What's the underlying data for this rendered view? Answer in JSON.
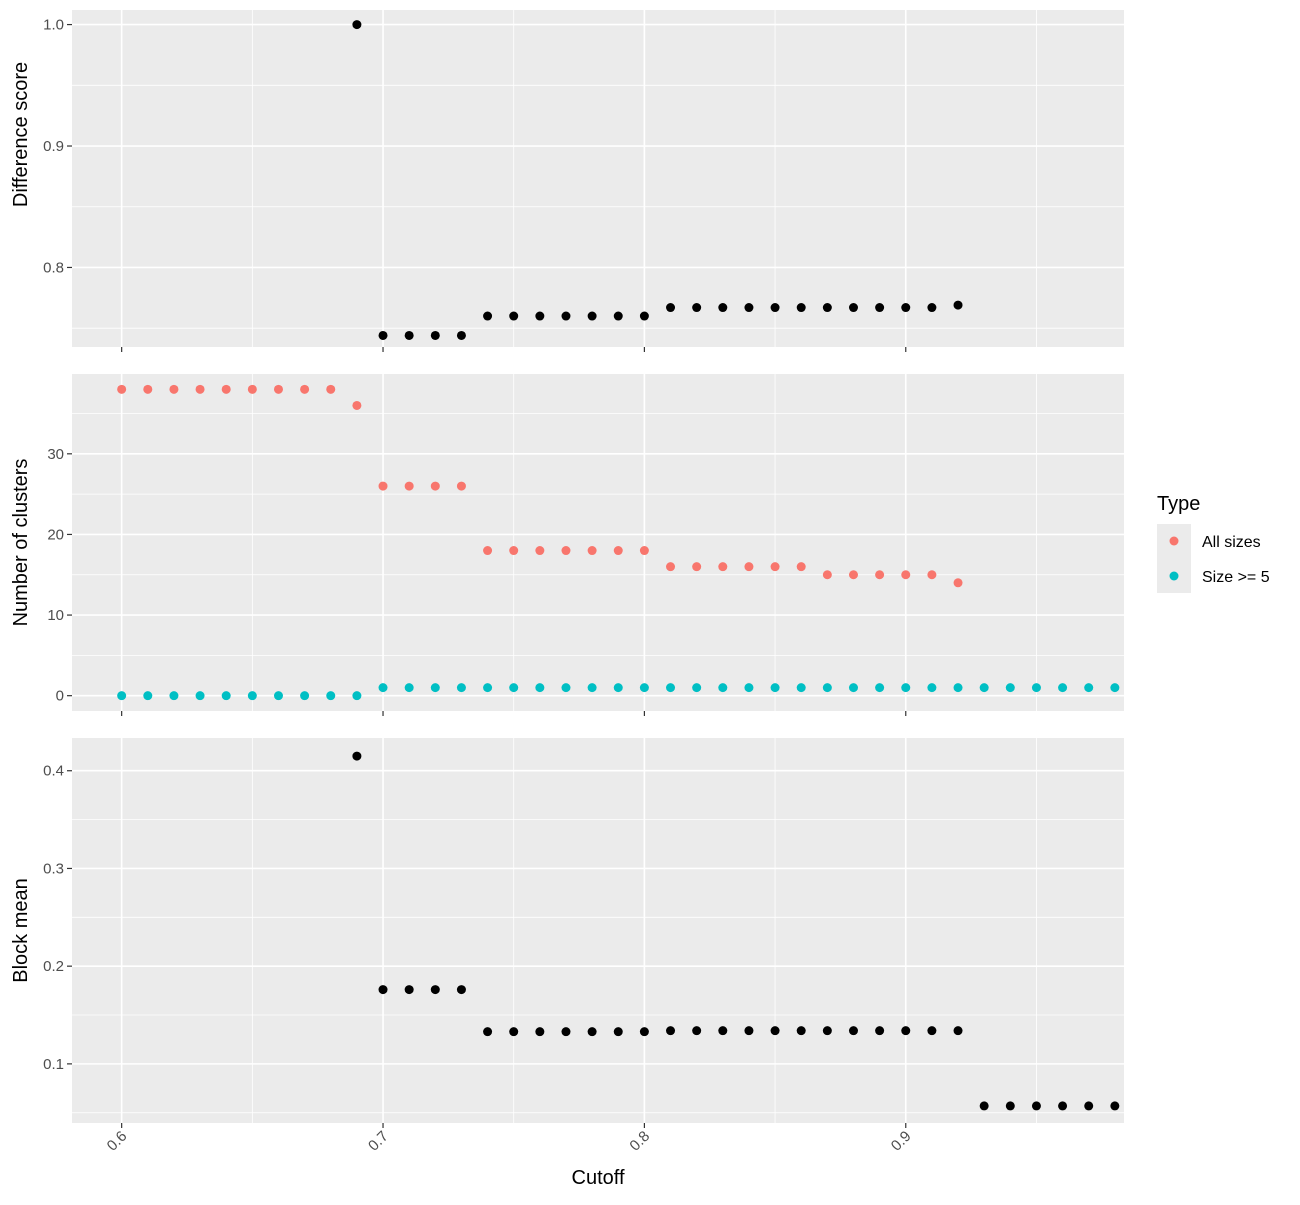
{
  "chart_data": {
    "type": "scatter",
    "xlabel": "Cutoff",
    "x_ticks": [
      0.6,
      0.7,
      0.8,
      0.9
    ],
    "xlim": [
      0.581,
      0.9835
    ],
    "panels": [
      {
        "id": "difference",
        "ylabel": "Difference score",
        "ylim": [
          0.7345,
          1.012
        ],
        "y_ticks": [
          0.8,
          0.9,
          1.0
        ],
        "y_tick_labels": [
          "0.8",
          "0.9",
          "1.0"
        ],
        "series": [
          {
            "color": "#000000",
            "x": [
              0.69,
              0.7,
              0.71,
              0.72,
              0.73,
              0.74,
              0.75,
              0.76,
              0.77,
              0.78,
              0.79,
              0.8,
              0.81,
              0.82,
              0.83,
              0.84,
              0.85,
              0.86,
              0.87,
              0.88,
              0.89,
              0.9,
              0.91,
              0.92
            ],
            "y": [
              1.0,
              0.744,
              0.744,
              0.744,
              0.744,
              0.76,
              0.76,
              0.76,
              0.76,
              0.76,
              0.76,
              0.76,
              0.767,
              0.767,
              0.767,
              0.767,
              0.767,
              0.767,
              0.767,
              0.767,
              0.767,
              0.767,
              0.767,
              0.769
            ]
          }
        ]
      },
      {
        "id": "clusters",
        "ylabel": "Number of clusters",
        "ylim": [
          -1.9,
          39.9
        ],
        "y_ticks": [
          0,
          10,
          20,
          30
        ],
        "y_tick_labels": [
          "0",
          "10",
          "20",
          "30"
        ],
        "series": [
          {
            "name": "All sizes",
            "color": "#F8766D",
            "x": [
              0.6,
              0.61,
              0.62,
              0.63,
              0.64,
              0.65,
              0.66,
              0.67,
              0.68,
              0.69,
              0.7,
              0.71,
              0.72,
              0.73,
              0.74,
              0.75,
              0.76,
              0.77,
              0.78,
              0.79,
              0.8,
              0.81,
              0.82,
              0.83,
              0.84,
              0.85,
              0.86,
              0.87,
              0.88,
              0.89,
              0.9,
              0.91,
              0.92
            ],
            "y": [
              38,
              38,
              38,
              38,
              38,
              38,
              38,
              38,
              38,
              36,
              26,
              26,
              26,
              26,
              18,
              18,
              18,
              18,
              18,
              18,
              18,
              16,
              16,
              16,
              16,
              16,
              16,
              15,
              15,
              15,
              15,
              15,
              14
            ]
          },
          {
            "name": "Size >= 5",
            "color": "#00BFC4",
            "x": [
              0.6,
              0.61,
              0.62,
              0.63,
              0.64,
              0.65,
              0.66,
              0.67,
              0.68,
              0.69,
              0.7,
              0.71,
              0.72,
              0.73,
              0.74,
              0.75,
              0.76,
              0.77,
              0.78,
              0.79,
              0.8,
              0.81,
              0.82,
              0.83,
              0.84,
              0.85,
              0.86,
              0.87,
              0.88,
              0.89,
              0.9,
              0.91,
              0.92,
              0.93,
              0.94,
              0.95,
              0.96,
              0.97,
              0.98
            ],
            "y": [
              0,
              0,
              0,
              0,
              0,
              0,
              0,
              0,
              0,
              0,
              1,
              1,
              1,
              1,
              1,
              1,
              1,
              1,
              1,
              1,
              1,
              1,
              1,
              1,
              1,
              1,
              1,
              1,
              1,
              1,
              1,
              1,
              1,
              1,
              1,
              1,
              1,
              1,
              1
            ]
          }
        ]
      },
      {
        "id": "blockmean",
        "ylabel": "Block mean",
        "ylim": [
          0.0395,
          0.4335
        ],
        "y_ticks": [
          0.1,
          0.2,
          0.3,
          0.4
        ],
        "y_tick_labels": [
          "0.1",
          "0.2",
          "0.3",
          "0.4"
        ],
        "series": [
          {
            "color": "#000000",
            "x": [
              0.69,
              0.7,
              0.71,
              0.72,
              0.73,
              0.74,
              0.75,
              0.76,
              0.77,
              0.78,
              0.79,
              0.8,
              0.81,
              0.82,
              0.83,
              0.84,
              0.85,
              0.86,
              0.87,
              0.88,
              0.89,
              0.9,
              0.91,
              0.92,
              0.93,
              0.94,
              0.95,
              0.96,
              0.97,
              0.98
            ],
            "y": [
              0.415,
              0.176,
              0.176,
              0.176,
              0.176,
              0.133,
              0.133,
              0.133,
              0.133,
              0.133,
              0.133,
              0.133,
              0.134,
              0.134,
              0.134,
              0.134,
              0.134,
              0.134,
              0.134,
              0.134,
              0.134,
              0.134,
              0.134,
              0.134,
              0.057,
              0.057,
              0.057,
              0.057,
              0.057,
              0.057
            ]
          }
        ]
      }
    ],
    "legend": {
      "title": "Type",
      "position": "right",
      "entries": [
        {
          "label": "All sizes",
          "color": "#F8766D"
        },
        {
          "label": "Size >= 5",
          "color": "#00BFC4"
        }
      ]
    },
    "grid": true,
    "background": "#EBEBEB"
  }
}
